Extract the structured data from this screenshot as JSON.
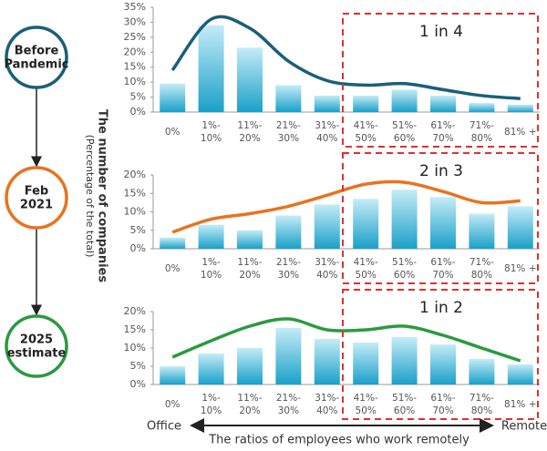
{
  "chart_data": [
    {
      "type": "bar",
      "annotation": "1 in 4",
      "categories": [
        "0%",
        "1%-\n10%",
        "11%-\n20%",
        "21%-\n30%",
        "31%-\n40%",
        "41%-\n50%",
        "51%-\n60%",
        "61%-\n70%",
        "71%-\n80%",
        "81% +"
      ],
      "values": [
        9.5,
        29,
        21.5,
        9,
        5.5,
        5.5,
        7.5,
        5.5,
        3,
        2.5
      ],
      "color": "#1aa0c8",
      "trend": [
        14,
        31,
        28,
        17,
        10.5,
        9,
        9.5,
        7.5,
        5.5,
        4.5
      ],
      "trend_color": "#1a5f7a",
      "ylim": [
        0,
        35
      ],
      "yticks": [
        {
          "value": 0,
          "label": "0%"
        },
        {
          "value": 5,
          "label": "5%"
        },
        {
          "value": 10,
          "label": "10%"
        },
        {
          "value": 15,
          "label": "15%"
        },
        {
          "value": 20,
          "label": "20%"
        },
        {
          "value": 25,
          "label": "25%"
        },
        {
          "value": 30,
          "label": "30%"
        },
        {
          "value": 35,
          "label": "35%"
        }
      ],
      "stage": "Before\nPandemic",
      "grid": false
    },
    {
      "type": "bar",
      "annotation": "2 in 3",
      "categories": [
        "0%",
        "1%-\n10%",
        "11%-\n20%",
        "21%-\n30%",
        "31%-\n40%",
        "41%-\n50%",
        "51%-\n60%",
        "61%-\n70%",
        "71%-\n80%",
        "81% +"
      ],
      "values": [
        3,
        6.5,
        5,
        9,
        12,
        13.5,
        16,
        14,
        9.5,
        11.5
      ],
      "color": "#1aa0c8",
      "trend": [
        4.5,
        8,
        9.5,
        11.5,
        14.5,
        17.5,
        18,
        15.5,
        12.5,
        13
      ],
      "trend_color": "#e8731f",
      "ylim": [
        0,
        20
      ],
      "yticks": [
        {
          "value": 0,
          "label": "0%"
        },
        {
          "value": 5,
          "label": "5%"
        },
        {
          "value": 10,
          "label": "10%"
        },
        {
          "value": 15,
          "label": "15%"
        },
        {
          "value": 20,
          "label": "20%"
        }
      ],
      "stage": "Feb\n2021",
      "grid": false
    },
    {
      "type": "bar",
      "annotation": "1 in 2",
      "categories": [
        "0%",
        "1%-\n10%",
        "11%-\n20%",
        "21%-\n30%",
        "31%-\n40%",
        "41%-\n50%",
        "51%-\n60%",
        "61%-\n70%",
        "71%-\n80%",
        "81% +"
      ],
      "values": [
        5,
        8.5,
        10,
        15.5,
        12.5,
        11.5,
        13,
        11,
        7,
        5.5
      ],
      "color": "#1aa0c8",
      "trend": [
        7.5,
        12,
        16,
        18,
        15,
        15,
        16,
        13.5,
        10,
        6.5
      ],
      "trend_color": "#2a9a3f",
      "ylim": [
        0,
        20
      ],
      "yticks": [
        {
          "value": 0,
          "label": "0%"
        },
        {
          "value": 5,
          "label": "5%"
        },
        {
          "value": 10,
          "label": "10%"
        },
        {
          "value": 15,
          "label": "15%"
        },
        {
          "value": 20,
          "label": "20%"
        }
      ],
      "stage": "2025\nestimate",
      "grid": false
    }
  ],
  "ylabel": "The number of companies",
  "ysublabel": "(Percentage of the total)",
  "xlabel": "The ratios of employees who work remotely",
  "x_left": "Office",
  "x_right": "Remote"
}
